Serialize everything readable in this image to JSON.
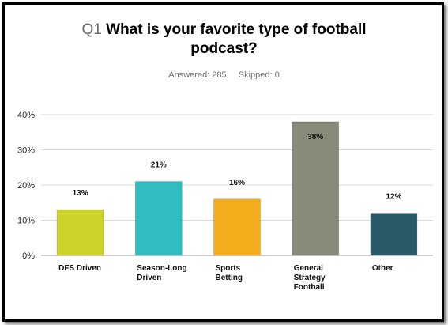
{
  "question": {
    "number": "Q1",
    "line1": "What is your favorite type of football",
    "line2": "podcast?"
  },
  "stats": {
    "answered": "Answered: 285",
    "skipped": "Skipped: 0"
  },
  "chart_data": {
    "type": "bar",
    "title": "Q1 What is your favorite type of football podcast?",
    "categories": [
      "DFS Driven",
      "Season-Long Driven",
      "Sports Betting",
      "General Strategy Football",
      "Other"
    ],
    "category_lines": [
      [
        "DFS Driven"
      ],
      [
        "Season-Long",
        "Driven"
      ],
      [
        "Sports",
        "Betting"
      ],
      [
        "General",
        "Strategy",
        "Football"
      ],
      [
        "Other"
      ]
    ],
    "values": [
      13,
      21,
      16,
      38,
      12
    ],
    "value_labels": [
      "13%",
      "21%",
      "16%",
      "38%",
      "12%"
    ],
    "colors": [
      "#cdd32a",
      "#30bdc0",
      "#f4ae1d",
      "#878a79",
      "#2a5a68"
    ],
    "yticks": [
      "0%",
      "10%",
      "20%",
      "30%",
      "40%"
    ],
    "ylim": [
      0,
      40
    ],
    "grid": true,
    "legend": "none"
  }
}
